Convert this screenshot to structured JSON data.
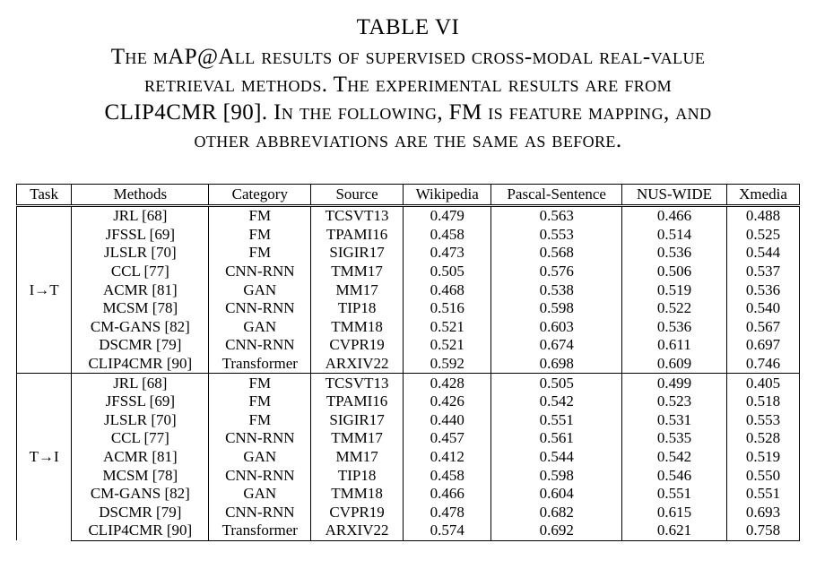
{
  "caption": {
    "table_number": "TABLE VI",
    "lines": [
      "The mAP@All results of supervised cross-modal real-value",
      "retrieval methods. The experimental results are from",
      "CLIP4CMR [90]. In the following, FM is feature mapping, and",
      "other abbreviations are the same as before."
    ]
  },
  "table": {
    "headers": [
      "Task",
      "Methods",
      "Category",
      "Source",
      "Wikipedia",
      "Pascal-Sentence",
      "NUS-WIDE",
      "Xmedia"
    ],
    "groups": [
      {
        "task": "I→T",
        "rows": [
          [
            "JRL [68]",
            "FM",
            "TCSVT13",
            "0.479",
            "0.563",
            "0.466",
            "0.488"
          ],
          [
            "JFSSL [69]",
            "FM",
            "TPAMI16",
            "0.458",
            "0.553",
            "0.514",
            "0.525"
          ],
          [
            "JLSLR [70]",
            "FM",
            "SIGIR17",
            "0.473",
            "0.568",
            "0.536",
            "0.544"
          ],
          [
            "CCL [77]",
            "CNN-RNN",
            "TMM17",
            "0.505",
            "0.576",
            "0.506",
            "0.537"
          ],
          [
            "ACMR [81]",
            "GAN",
            "MM17",
            "0.468",
            "0.538",
            "0.519",
            "0.536"
          ],
          [
            "MCSM [78]",
            "CNN-RNN",
            "TIP18",
            "0.516",
            "0.598",
            "0.522",
            "0.540"
          ],
          [
            "CM-GANS [82]",
            "GAN",
            "TMM18",
            "0.521",
            "0.603",
            "0.536",
            "0.567"
          ],
          [
            "DSCMR [79]",
            "CNN-RNN",
            "CVPR19",
            "0.521",
            "0.674",
            "0.611",
            "0.697"
          ],
          [
            "CLIP4CMR [90]",
            "Transformer",
            "ARXIV22",
            "0.592",
            "0.698",
            "0.609",
            "0.746"
          ]
        ]
      },
      {
        "task": "T→I",
        "rows": [
          [
            "JRL [68]",
            "FM",
            "TCSVT13",
            "0.428",
            "0.505",
            "0.499",
            "0.405"
          ],
          [
            "JFSSL [69]",
            "FM",
            "TPAMI16",
            "0.426",
            "0.542",
            "0.523",
            "0.518"
          ],
          [
            "JLSLR [70]",
            "FM",
            "SIGIR17",
            "0.440",
            "0.551",
            "0.531",
            "0.553"
          ],
          [
            "CCL [77]",
            "CNN-RNN",
            "TMM17",
            "0.457",
            "0.561",
            "0.535",
            "0.528"
          ],
          [
            "ACMR [81]",
            "GAN",
            "MM17",
            "0.412",
            "0.544",
            "0.542",
            "0.519"
          ],
          [
            "MCSM [78]",
            "CNN-RNN",
            "TIP18",
            "0.458",
            "0.598",
            "0.546",
            "0.550"
          ],
          [
            "CM-GANS [82]",
            "GAN",
            "TMM18",
            "0.466",
            "0.604",
            "0.551",
            "0.551"
          ],
          [
            "DSCMR [79]",
            "CNN-RNN",
            "CVPR19",
            "0.478",
            "0.682",
            "0.615",
            "0.693"
          ],
          [
            "CLIP4CMR [90]",
            "Transformer",
            "ARXIV22",
            "0.574",
            "0.692",
            "0.621",
            "0.758"
          ]
        ]
      }
    ]
  }
}
